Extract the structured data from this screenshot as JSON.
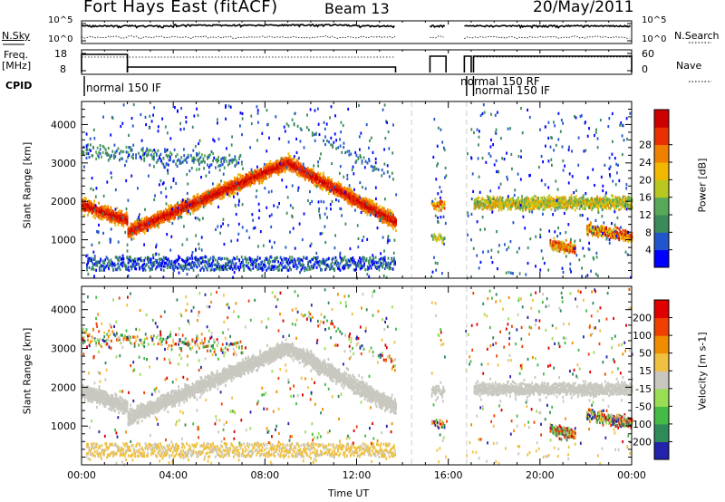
{
  "header": {
    "radar": "Fort Hays East (fitACF)",
    "beam": "Beam 13",
    "date": "20/May/2011"
  },
  "panels": {
    "nsky_label": "N.Sky",
    "nsearch_label": "N.Search",
    "freq_label_line1": "Freq.",
    "freq_label_line2": "[MHz]",
    "nave_label": "Nave",
    "cpid_label": "CPID",
    "nsky_ticks": [
      "10^5",
      "10^0"
    ],
    "nsearch_ticks": [
      "10^5",
      "10^0"
    ],
    "freq_ticks": [
      "18",
      "8"
    ],
    "nave_ticks": [
      "60",
      "0"
    ],
    "cpid_entries": [
      {
        "text": "normal 150 IF",
        "start_hour": 0
      },
      {
        "text": "normal 150 RF",
        "start_hour": 16.8
      },
      {
        "text": "normal 150 IF",
        "start_hour": 17.1
      }
    ]
  },
  "chart_data": [
    {
      "type": "heatmap",
      "title": "Power",
      "ylabel": "Slant Range [km]",
      "xlabel": "",
      "ylim": [
        0,
        4600
      ],
      "yticks": [
        1000,
        2000,
        3000,
        4000
      ],
      "colorbar_label": "Power [dB]",
      "colorbar_ticks": [
        "4",
        "8",
        "12",
        "16",
        "20",
        "24",
        "28"
      ],
      "colorbar_colors": [
        "#0000ff",
        "#2255cc",
        "#3a8a5a",
        "#58a85a",
        "#b8c820",
        "#f0b800",
        "#f08000",
        "#e83000",
        "#cc0000"
      ]
    },
    {
      "type": "heatmap",
      "title": "Velocity",
      "ylabel": "Slant Range [km]",
      "xlabel": "Time UT",
      "xlim": [
        0,
        24
      ],
      "ylim": [
        0,
        4600
      ],
      "yticks": [
        1000,
        2000,
        3000,
        4000
      ],
      "xticks": [
        "00:00",
        "04:00",
        "08:00",
        "12:00",
        "16:00",
        "20:00",
        "00:00"
      ],
      "colorbar_label": "Velocity [m s-1]",
      "colorbar_ticks": [
        "200",
        "100",
        "50",
        "15",
        "-15",
        "-50",
        "-100",
        "-200"
      ],
      "colorbar_colors": [
        "#2222aa",
        "#2e8b57",
        "#44bb44",
        "#99dd55",
        "#c8c8c0",
        "#f0c040",
        "#f08c00",
        "#f04000",
        "#e00000"
      ]
    }
  ]
}
